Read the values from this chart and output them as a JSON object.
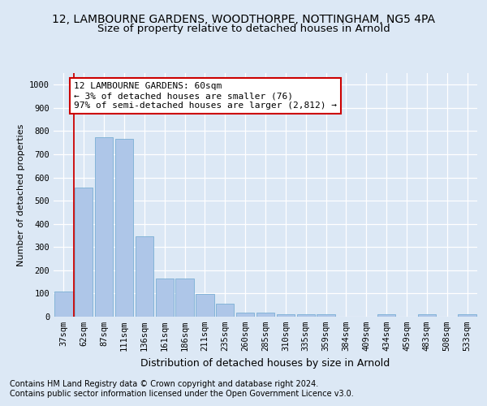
{
  "title1": "12, LAMBOURNE GARDENS, WOODTHORPE, NOTTINGHAM, NG5 4PA",
  "title2": "Size of property relative to detached houses in Arnold",
  "xlabel": "Distribution of detached houses by size in Arnold",
  "ylabel": "Number of detached properties",
  "categories": [
    "37sqm",
    "62sqm",
    "87sqm",
    "111sqm",
    "136sqm",
    "161sqm",
    "186sqm",
    "211sqm",
    "235sqm",
    "260sqm",
    "285sqm",
    "310sqm",
    "335sqm",
    "359sqm",
    "384sqm",
    "409sqm",
    "434sqm",
    "459sqm",
    "483sqm",
    "508sqm",
    "533sqm"
  ],
  "values": [
    110,
    555,
    775,
    765,
    345,
    165,
    165,
    97,
    55,
    18,
    18,
    10,
    10,
    10,
    0,
    0,
    10,
    0,
    10,
    0,
    10
  ],
  "bar_color": "#aec6e8",
  "bar_edge_color": "#7aafd4",
  "vline_color": "#cc0000",
  "annotation_text": "12 LAMBOURNE GARDENS: 60sqm\n← 3% of detached houses are smaller (76)\n97% of semi-detached houses are larger (2,812) →",
  "annotation_box_facecolor": "#ffffff",
  "annotation_box_edgecolor": "#cc0000",
  "ylim": [
    0,
    1050
  ],
  "yticks": [
    0,
    100,
    200,
    300,
    400,
    500,
    600,
    700,
    800,
    900,
    1000
  ],
  "footnote1": "Contains HM Land Registry data © Crown copyright and database right 2024.",
  "footnote2": "Contains public sector information licensed under the Open Government Licence v3.0.",
  "bg_color": "#dce8f5",
  "plot_bg_color": "#dce8f5",
  "grid_color": "#ffffff",
  "title1_fontsize": 10,
  "title2_fontsize": 9.5,
  "xlabel_fontsize": 9,
  "ylabel_fontsize": 8,
  "tick_fontsize": 7.5,
  "annot_fontsize": 8,
  "footnote_fontsize": 7
}
